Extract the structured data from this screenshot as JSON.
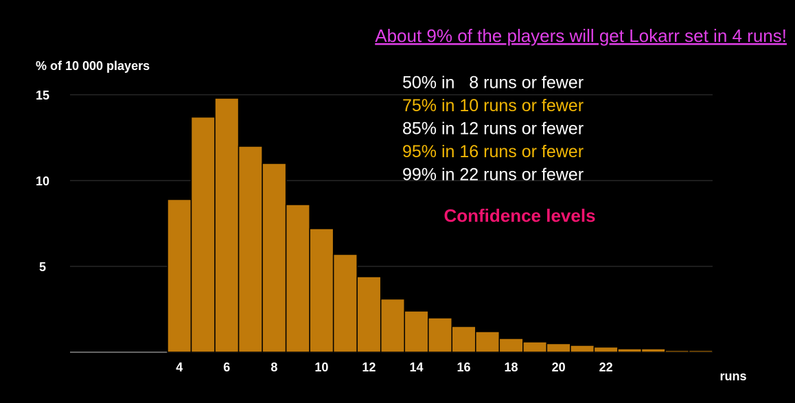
{
  "chart_data": {
    "type": "bar",
    "title": "About 9% of the players will get Lokarr set in 4 runs!",
    "y_label": "% of 10 000 players",
    "x_label": "runs",
    "categories": [
      "4",
      null,
      "6",
      null,
      "8",
      null,
      "10",
      null,
      "12",
      null,
      "14",
      null,
      "16",
      null,
      "18",
      null,
      "20",
      null,
      "22",
      null,
      null,
      null,
      null
    ],
    "values": [
      8.9,
      13.7,
      14.8,
      12.0,
      11.0,
      8.6,
      7.2,
      5.7,
      4.4,
      3.1,
      2.4,
      2.0,
      1.5,
      1.2,
      0.8,
      0.6,
      0.5,
      0.4,
      0.3,
      0.2,
      0.2,
      0.1,
      0.1
    ],
    "color": "#c07a0b",
    "ylim": [
      0,
      15
    ],
    "yticks": [
      5,
      10,
      15
    ],
    "grid": true,
    "annotations": [
      {
        "text": "50% in   8 runs or fewer",
        "color": "#ffffff"
      },
      {
        "text": "75% in 10 runs or fewer",
        "color": "#f2b705"
      },
      {
        "text": "85% in 12 runs or fewer",
        "color": "#ffffff"
      },
      {
        "text": "95% in 16 runs or fewer",
        "color": "#f2b705"
      },
      {
        "text": "99% in 22 runs or fewer",
        "color": "#ffffff"
      }
    ],
    "legend_title": "Confidence levels"
  }
}
